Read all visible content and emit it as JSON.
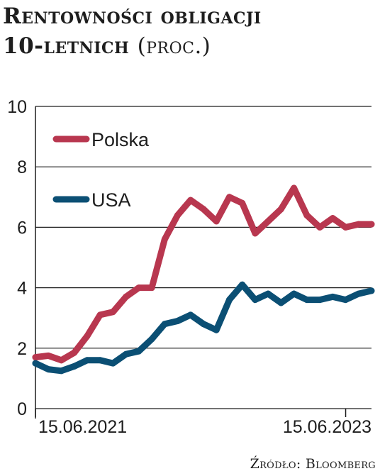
{
  "title": {
    "line1": "Rentowności obligacji",
    "line2": "10-letnich",
    "unit": "(proc.)"
  },
  "source": "Źródło: Bloomberg",
  "colors": {
    "polska": "#b8374f",
    "usa": "#0b4f74",
    "grid": "#1e1e1e"
  },
  "chart_data": {
    "type": "line",
    "title": "Rentowności obligacji 10-letnich (proc.)",
    "xlabel": "",
    "ylabel": "",
    "ylim": [
      0,
      10
    ],
    "yticks": [
      "0",
      "2",
      "4",
      "6",
      "8",
      "10"
    ],
    "xticks": [
      "15.06.2021",
      "15.06.2023"
    ],
    "grid": "horizontal",
    "legend": "top-left",
    "x": [
      "2021-06",
      "2021-07",
      "2021-08",
      "2021-09",
      "2021-10",
      "2021-11",
      "2021-12",
      "2022-01",
      "2022-02",
      "2022-03",
      "2022-04",
      "2022-05",
      "2022-06",
      "2022-07",
      "2022-08",
      "2022-09",
      "2022-10",
      "2022-11",
      "2022-12",
      "2023-01",
      "2023-02",
      "2023-03",
      "2023-04",
      "2023-05",
      "2023-06",
      "2023-07",
      "2023-08"
    ],
    "series": [
      {
        "name": "Polska",
        "color": "#b8374f",
        "values": [
          1.7,
          1.75,
          1.6,
          1.85,
          2.4,
          3.1,
          3.2,
          3.7,
          4.0,
          4.0,
          5.6,
          6.4,
          6.9,
          6.6,
          6.2,
          7.0,
          6.8,
          5.8,
          6.2,
          6.6,
          7.3,
          6.4,
          6.0,
          6.3,
          6.0,
          6.1,
          6.1
        ]
      },
      {
        "name": "USA",
        "color": "#0b4f74",
        "values": [
          1.5,
          1.3,
          1.25,
          1.4,
          1.6,
          1.6,
          1.5,
          1.8,
          1.9,
          2.3,
          2.8,
          2.9,
          3.1,
          2.8,
          2.6,
          3.6,
          4.1,
          3.6,
          3.8,
          3.5,
          3.8,
          3.6,
          3.6,
          3.7,
          3.6,
          3.8,
          3.9
        ]
      }
    ]
  }
}
